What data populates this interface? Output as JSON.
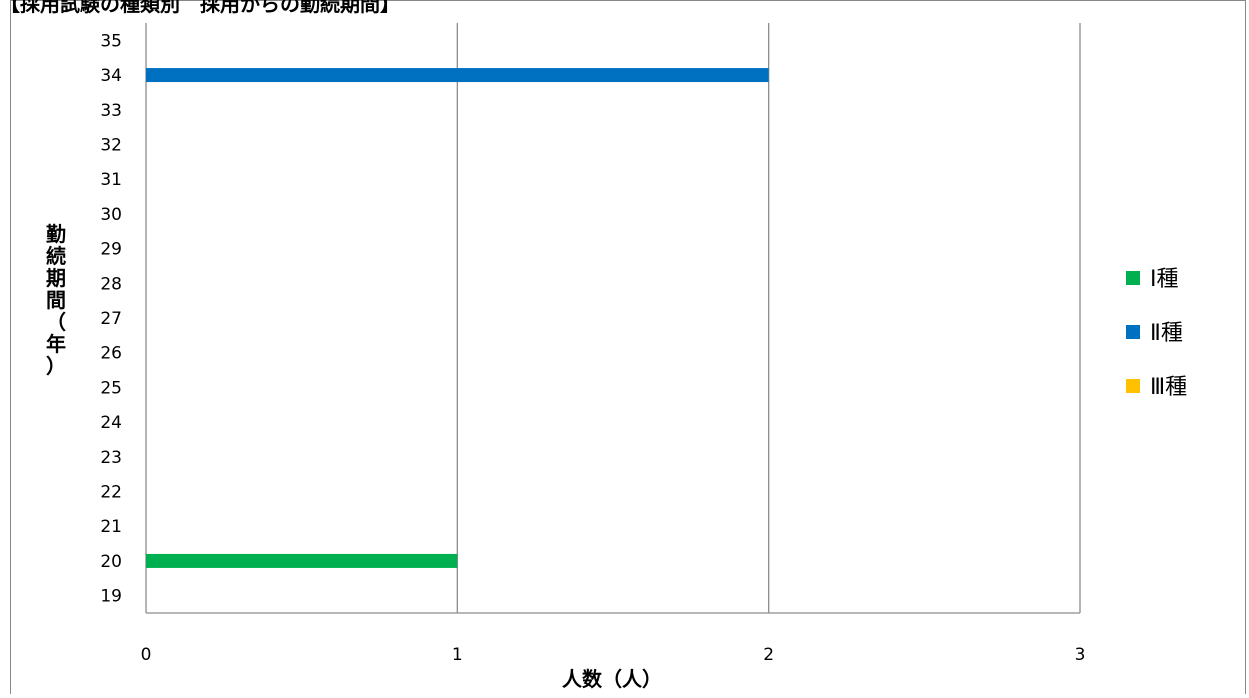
{
  "chart_data": {
    "type": "bar",
    "orientation": "horizontal",
    "title": "【採用試験の種類別　採用からの勤続期間】",
    "xlabel": "人数（人）",
    "ylabel": "勤続期間（年）",
    "xlim": [
      0,
      3
    ],
    "x_ticks": [
      0,
      1,
      2,
      3
    ],
    "ylim": [
      18.5,
      35.5
    ],
    "y_ticks": [
      35,
      34,
      33,
      32,
      31,
      30,
      29,
      28,
      27,
      26,
      25,
      24,
      23,
      22,
      21,
      20,
      19
    ],
    "grid": "vertical",
    "legend_position": "right",
    "series": [
      {
        "name": "Ⅰ種",
        "color": "#00b050",
        "points": [
          {
            "y": 20,
            "x": 1
          }
        ]
      },
      {
        "name": "Ⅱ種",
        "color": "#0070c0",
        "points": [
          {
            "y": 34,
            "x": 2
          }
        ]
      },
      {
        "name": "Ⅲ種",
        "color": "#ffc000",
        "points": []
      }
    ]
  }
}
